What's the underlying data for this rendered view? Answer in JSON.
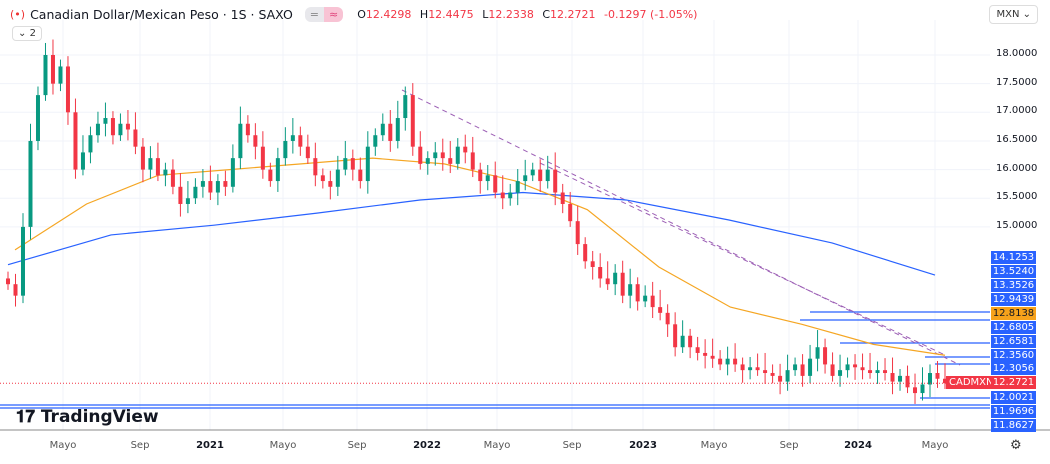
{
  "header": {
    "title": "Canadian Dollar/Mexican Peso · 1S · SAXO",
    "open_label": "O",
    "open": "12.4298",
    "high_label": "H",
    "high": "12.4475",
    "low_label": "L",
    "low": "12.2338",
    "close_label": "C",
    "close": "12.2721",
    "change": "-0.1297 (-1.05%)",
    "indicators_collapsed": "2"
  },
  "currency": "MXN",
  "symbol_tag": "CADMXN",
  "brand": "TradingView",
  "colors": {
    "up": "#089981",
    "down": "#f23645",
    "ma_fast": "#f5a623",
    "ma_slow": "#2962ff",
    "trend": "#9c5fb5",
    "label_bg": "#2962ff",
    "highlight": "#f7a21b"
  },
  "chart_data": {
    "type": "candlestick",
    "y_ticks": [
      "18.0000",
      "17.5000",
      "17.0000",
      "16.5000",
      "16.0000",
      "15.5000",
      "15.0000"
    ],
    "x_ticks": [
      "Mayo",
      "Sep",
      "2021",
      "Mayo",
      "Sep",
      "2022",
      "Mayo",
      "Sep",
      "2023",
      "Mayo",
      "Sep",
      "2024",
      "Mayo"
    ],
    "price_labels": [
      "14.1253",
      "13.5240",
      "13.3526",
      "12.9439",
      "12.8138",
      "12.6805",
      "12.6581",
      "12.3560",
      "12.3056",
      "12.2721",
      "12.0021",
      "11.9696",
      "11.8627"
    ],
    "highlight_label": "12.8138",
    "current_price": "12.2721",
    "closes": [
      14.0,
      13.8,
      15.0,
      16.5,
      17.3,
      18.0,
      17.5,
      17.8,
      17.0,
      16.0,
      16.3,
      16.6,
      16.8,
      16.9,
      16.6,
      16.8,
      16.7,
      16.4,
      16.0,
      16.2,
      15.9,
      16.0,
      15.7,
      15.4,
      15.5,
      15.7,
      15.8,
      15.6,
      15.8,
      15.7,
      16.2,
      16.8,
      16.6,
      16.4,
      16.0,
      15.8,
      16.2,
      16.5,
      16.6,
      16.4,
      16.2,
      15.9,
      15.8,
      15.7,
      16.0,
      16.2,
      16.0,
      15.8,
      16.4,
      16.6,
      16.8,
      16.5,
      16.9,
      17.3,
      16.4,
      16.1,
      16.2,
      16.3,
      16.2,
      16.1,
      16.4,
      16.3,
      16.0,
      15.8,
      15.9,
      15.6,
      15.5,
      15.6,
      15.8,
      15.9,
      16.0,
      15.8,
      16.0,
      15.6,
      15.4,
      15.1,
      14.7,
      14.4,
      14.3,
      14.1,
      14.0,
      14.2,
      13.8,
      14.0,
      13.7,
      13.8,
      13.6,
      13.5,
      13.3,
      12.9,
      13.1,
      12.9,
      12.8,
      12.75,
      12.7,
      12.6,
      12.7,
      12.6,
      12.5,
      12.55,
      12.5,
      12.45,
      12.4,
      12.3,
      12.5,
      12.6,
      12.4,
      12.7,
      12.9,
      12.6,
      12.4,
      12.5,
      12.6,
      12.55,
      12.5,
      12.45,
      12.5,
      12.45,
      12.3,
      12.4,
      12.2,
      12.1,
      12.25,
      12.45,
      12.35,
      12.2721
    ],
    "ma_fast": [
      14.6,
      15.4,
      15.9,
      16.0,
      16.1,
      16.2,
      16.1,
      15.8,
      15.3,
      14.3,
      13.6,
      13.3,
      12.95,
      12.76
    ],
    "ma_slow": [
      14.34,
      14.86,
      15.03,
      15.24,
      15.47,
      15.6,
      15.47,
      15.12,
      14.72,
      14.16
    ],
    "horizontal_levels": [
      12.9439,
      12.8138,
      12.6805,
      12.356,
      12.3056,
      12.0021,
      11.9696,
      11.8627
    ]
  }
}
